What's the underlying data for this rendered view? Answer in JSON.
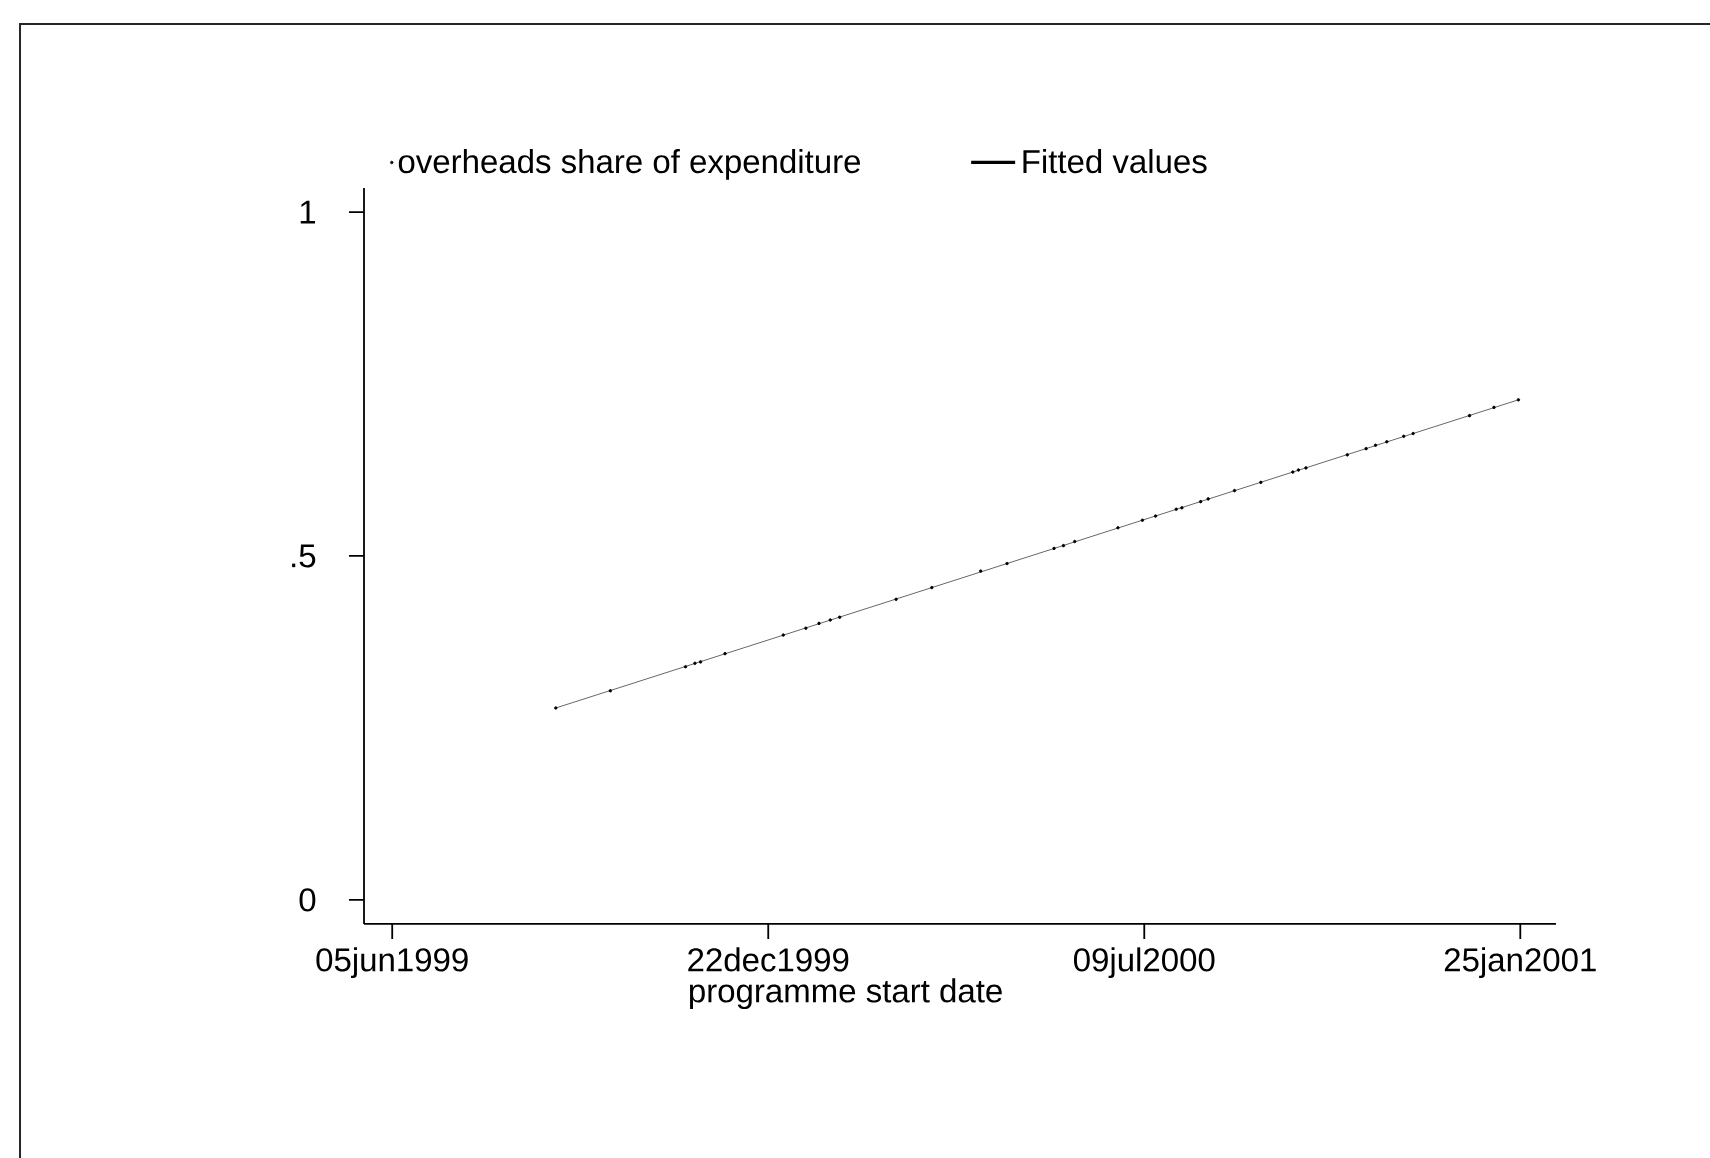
{
  "chart_data": {
    "type": "scatter",
    "xlabel": "programme start date",
    "legend": "top",
    "xlim": [
      "1999-05-21",
      "2001-02-13"
    ],
    "xticks": [
      {
        "value": "1999-06-05",
        "label": "05jun1999"
      },
      {
        "value": "1999-12-22",
        "label": "22dec1999"
      },
      {
        "value": "2000-07-09",
        "label": "09jul2000"
      },
      {
        "value": "2001-01-25",
        "label": "25jan2001"
      }
    ],
    "ylim": [
      -0.035,
      1.035
    ],
    "yticks": [
      0,
      {
        "value": 0.5,
        "label": ".5"
      },
      1
    ],
    "series": [
      {
        "name": "overheads share of expenditure",
        "color": "#000000",
        "marker": "circle",
        "x": [
          "1999-08-31",
          "1999-09-29",
          "1999-11-08",
          "1999-11-13",
          "1999-11-16",
          "1999-11-29",
          "1999-12-30",
          "2000-01-11",
          "2000-01-18",
          "2000-01-24",
          "2000-01-29",
          "2000-02-28",
          "2000-03-18",
          "2000-04-13",
          "2000-04-27",
          "2000-05-22",
          "2000-05-27",
          "2000-06-02",
          "2000-06-25",
          "2000-07-08",
          "2000-07-15",
          "2000-07-26",
          "2000-07-29",
          "2000-08-08",
          "2000-08-12",
          "2000-08-26",
          "2000-09-09",
          "2000-09-26",
          "2000-09-29",
          "2000-10-03",
          "2000-10-25",
          "2000-11-04",
          "2000-11-09",
          "2000-11-15",
          "2000-11-24",
          "2000-11-29",
          "2000-12-29",
          "2001-01-11",
          "2001-01-24"
        ],
        "values": [
          0.279,
          0.304,
          0.339,
          0.344,
          0.346,
          0.358,
          0.385,
          0.395,
          0.402,
          0.407,
          0.411,
          0.437,
          0.454,
          0.478,
          0.489,
          0.511,
          0.515,
          0.521,
          0.541,
          0.552,
          0.558,
          0.568,
          0.57,
          0.579,
          0.583,
          0.595,
          0.607,
          0.622,
          0.625,
          0.628,
          0.647,
          0.656,
          0.661,
          0.666,
          0.674,
          0.678,
          0.704,
          0.716,
          0.727
        ]
      },
      {
        "name": "Fitted values",
        "type": "line",
        "color": "#000000",
        "marker": "none",
        "line_style": "solid",
        "x": [
          "1999-08-31",
          "2001-01-24"
        ],
        "values": [
          0.279,
          0.727
        ]
      }
    ]
  }
}
